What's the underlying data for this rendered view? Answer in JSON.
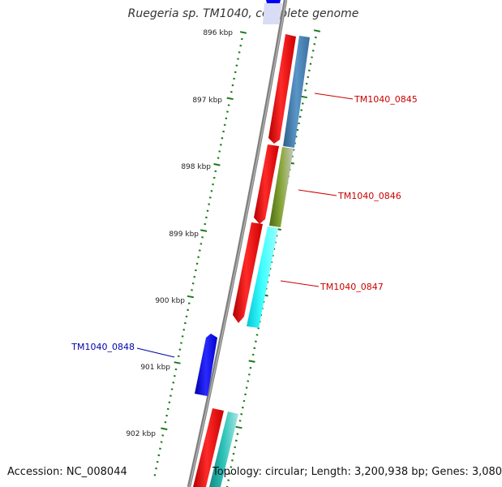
{
  "title": "Ruegeria sp. TM1040, complete genome",
  "footer": {
    "accession": "Accession: NC_008044",
    "stats": "Topology: circular; Length: 3,200,938 bp; Genes: 3,080"
  },
  "colors": {
    "forward_outer": "#ff0000",
    "forward_inner_0845": "#4682b4",
    "forward_inner_0846": "#6b8e23",
    "forward_inner_0847": "#00ffff",
    "forward_inner_next": "#20b2aa",
    "reverse_gene": "#0000ff",
    "ticks": "#1a7a1a",
    "backbone": "#808080",
    "label_forward": "#cc0000",
    "label_reverse": "#0000aa"
  },
  "ticks": [
    {
      "label": "896 kbp"
    },
    {
      "label": "897 kbp"
    },
    {
      "label": "898 kbp"
    },
    {
      "label": "899 kbp"
    },
    {
      "label": "900 kbp"
    },
    {
      "label": "901 kbp"
    },
    {
      "label": "902 kbp"
    }
  ],
  "genes": [
    {
      "name": "TM1040_0845",
      "strand": "forward"
    },
    {
      "name": "TM1040_0846",
      "strand": "forward"
    },
    {
      "name": "TM1040_0847",
      "strand": "forward"
    },
    {
      "name": "TM1040_0848",
      "strand": "reverse"
    }
  ]
}
